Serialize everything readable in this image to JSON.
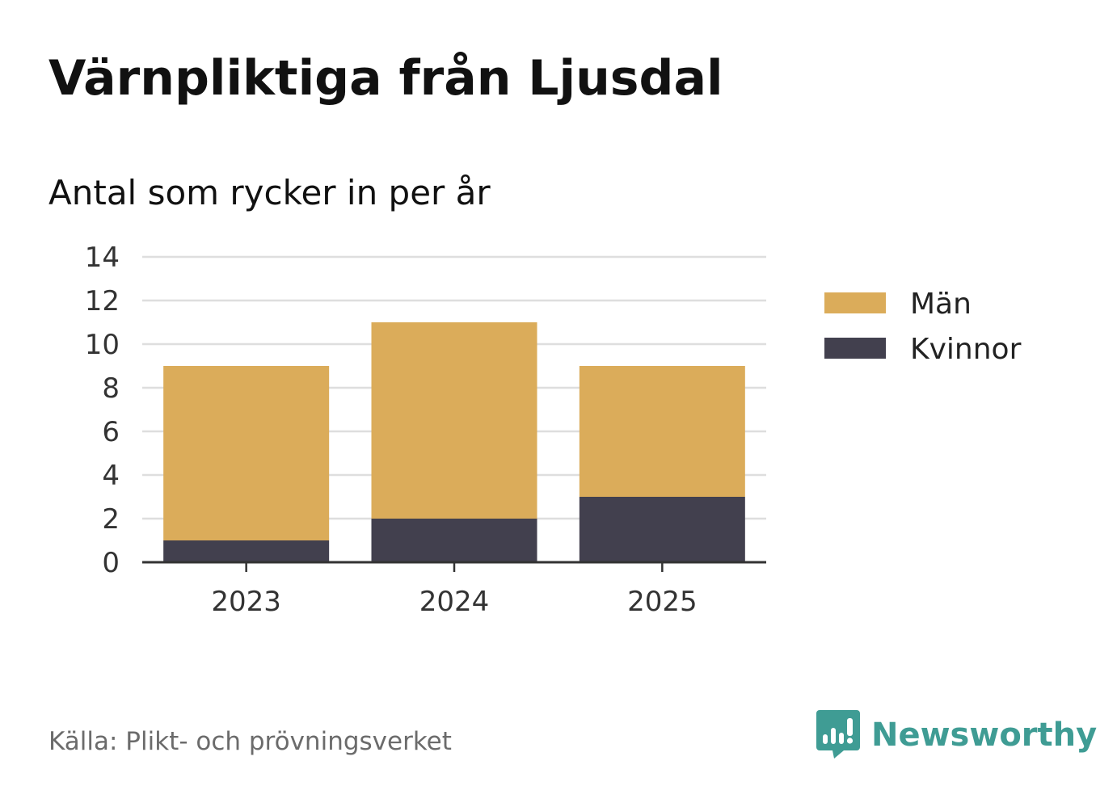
{
  "header": {
    "title": "Värnpliktiga från Ljusdal",
    "subtitle": "Antal som rycker in per år"
  },
  "footer": {
    "source": "Källa: Plikt- och prövningsverket",
    "brand": "Newsworthy"
  },
  "colors": {
    "men": "#dbac5a",
    "women": "#42404e",
    "grid": "#dedede",
    "axis": "#333333",
    "brand": "#3f9c94"
  },
  "chart_data": {
    "type": "bar",
    "stacked": true,
    "categories": [
      "2023",
      "2024",
      "2025"
    ],
    "series": [
      {
        "name": "Kvinnor",
        "values": [
          1,
          2,
          3
        ]
      },
      {
        "name": "Män",
        "values": [
          8,
          9,
          6
        ]
      }
    ],
    "ylim": [
      0,
      14
    ],
    "yticks": [
      0,
      2,
      4,
      6,
      8,
      10,
      12,
      14
    ],
    "grid": true,
    "legend": {
      "position": "right",
      "items": [
        "Män",
        "Kvinnor"
      ]
    }
  }
}
